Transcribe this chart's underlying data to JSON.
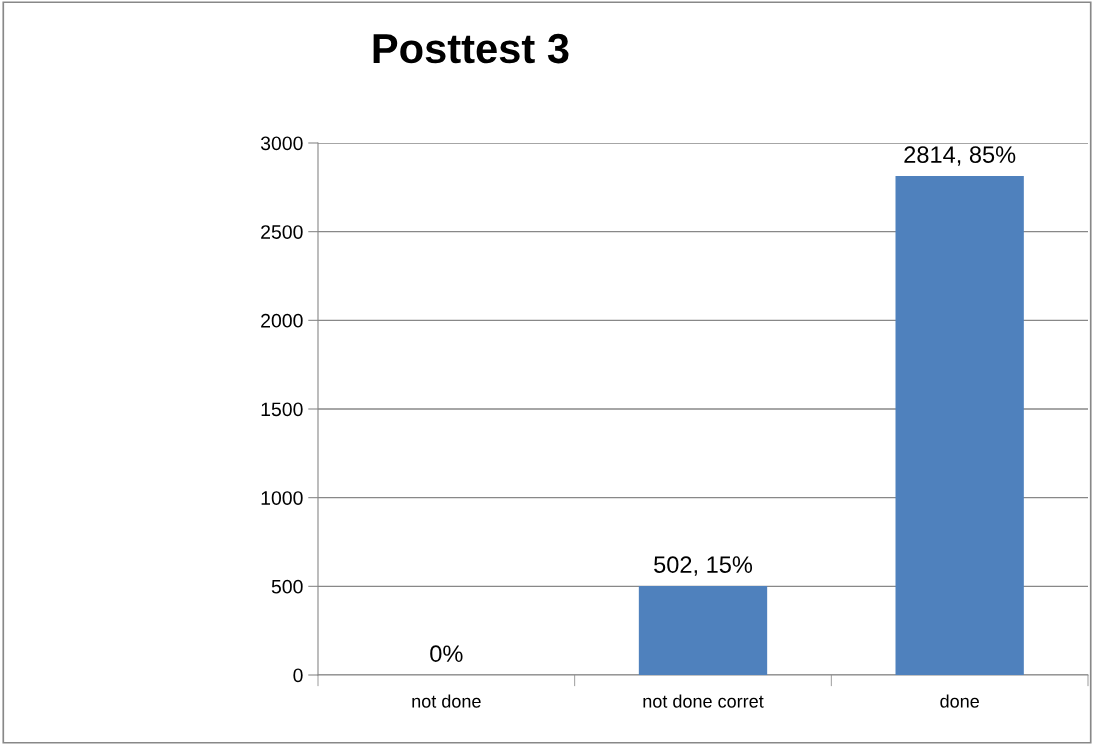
{
  "chart_data": {
    "type": "bar",
    "title": "Posttest 3",
    "categories": [
      "not done",
      "not done corret",
      "done"
    ],
    "values": [
      0,
      502,
      2814
    ],
    "color": "#4f81bd",
    "value_labels": [
      "0%",
      "502, 15%",
      "2814, 85%"
    ],
    "ylim": [
      0,
      3000
    ],
    "yticks": [
      0,
      500,
      1000,
      1500,
      2000,
      2500,
      3000
    ],
    "grid": "y",
    "legend": false
  }
}
